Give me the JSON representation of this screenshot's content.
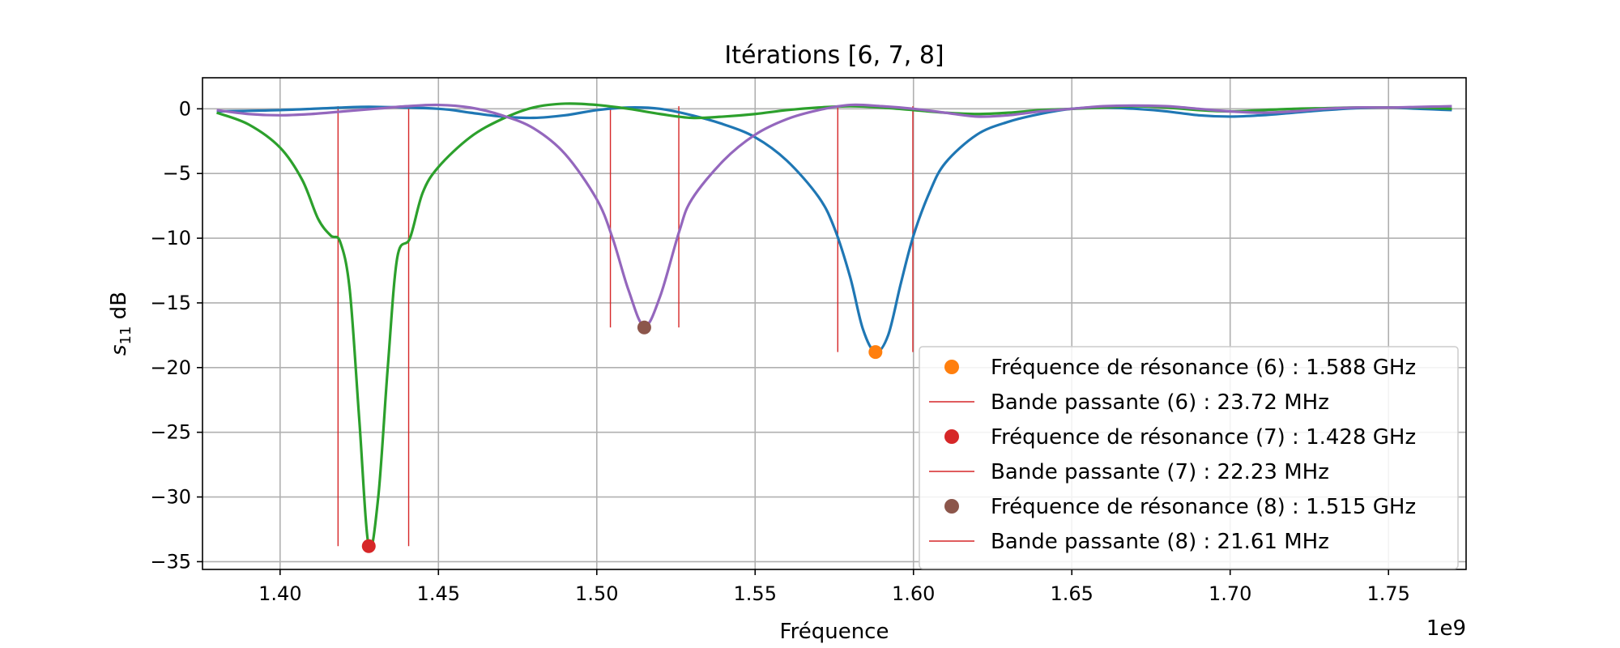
{
  "chart_data": {
    "type": "line",
    "title": "Itérations [6, 7, 8]",
    "xlabel": "Fréquence",
    "ylabel_main": "s",
    "ylabel_sub": "11",
    "ylabel_suffix": " dB",
    "x_offset_label": "1e9",
    "xlim": [
      1.3755,
      1.7745
    ],
    "ylim": [
      -35.6,
      2.4
    ],
    "x_ticks": [
      1.4,
      1.45,
      1.5,
      1.55,
      1.6,
      1.65,
      1.7,
      1.75
    ],
    "x_tick_labels": [
      "1.40",
      "1.45",
      "1.50",
      "1.55",
      "1.60",
      "1.65",
      "1.70",
      "1.75"
    ],
    "y_ticks": [
      0,
      -5,
      -10,
      -15,
      -20,
      -25,
      -30,
      -35
    ],
    "y_tick_labels": [
      "0",
      "−5",
      "−10",
      "−15",
      "−20",
      "−25",
      "−30",
      "−35"
    ],
    "grid": true,
    "legend_position": "lower right",
    "series": [
      {
        "color": "#1f77b4",
        "points": [
          [
            1.38,
            -0.2
          ],
          [
            1.4,
            -0.1
          ],
          [
            1.42,
            0.1
          ],
          [
            1.43,
            0.15
          ],
          [
            1.45,
            0.0
          ],
          [
            1.46,
            -0.3
          ],
          [
            1.47,
            -0.6
          ],
          [
            1.48,
            -0.7
          ],
          [
            1.49,
            -0.5
          ],
          [
            1.5,
            -0.1
          ],
          [
            1.51,
            0.1
          ],
          [
            1.52,
            0.0
          ],
          [
            1.53,
            -0.5
          ],
          [
            1.54,
            -1.2
          ],
          [
            1.55,
            -2.2
          ],
          [
            1.56,
            -4.0
          ],
          [
            1.57,
            -6.8
          ],
          [
            1.575,
            -9.2
          ],
          [
            1.58,
            -13.0
          ],
          [
            1.584,
            -17.0
          ],
          [
            1.588,
            -18.8
          ],
          [
            1.592,
            -17.5
          ],
          [
            1.596,
            -13.5
          ],
          [
            1.6,
            -9.8
          ],
          [
            1.605,
            -6.5
          ],
          [
            1.61,
            -4.2
          ],
          [
            1.62,
            -2.0
          ],
          [
            1.63,
            -1.0
          ],
          [
            1.64,
            -0.4
          ],
          [
            1.65,
            0.0
          ],
          [
            1.66,
            0.1
          ],
          [
            1.67,
            0.0
          ],
          [
            1.68,
            -0.2
          ],
          [
            1.69,
            -0.5
          ],
          [
            1.7,
            -0.6
          ],
          [
            1.71,
            -0.5
          ],
          [
            1.72,
            -0.3
          ],
          [
            1.73,
            -0.1
          ],
          [
            1.74,
            0.05
          ],
          [
            1.75,
            0.1
          ],
          [
            1.76,
            0.0
          ],
          [
            1.77,
            -0.1
          ]
        ]
      },
      {
        "color": "#2ca02c",
        "points": [
          [
            1.38,
            -0.3
          ],
          [
            1.39,
            -1.2
          ],
          [
            1.4,
            -3.0
          ],
          [
            1.407,
            -5.5
          ],
          [
            1.412,
            -8.5
          ],
          [
            1.416,
            -9.8
          ],
          [
            1.419,
            -10.3
          ],
          [
            1.422,
            -14.0
          ],
          [
            1.425,
            -24.0
          ],
          [
            1.428,
            -33.8
          ],
          [
            1.431,
            -30.0
          ],
          [
            1.434,
            -20.0
          ],
          [
            1.437,
            -11.5
          ],
          [
            1.441,
            -10.0
          ],
          [
            1.445,
            -6.5
          ],
          [
            1.45,
            -4.5
          ],
          [
            1.46,
            -2.2
          ],
          [
            1.47,
            -0.8
          ],
          [
            1.48,
            0.1
          ],
          [
            1.49,
            0.4
          ],
          [
            1.5,
            0.3
          ],
          [
            1.51,
            0.0
          ],
          [
            1.52,
            -0.4
          ],
          [
            1.53,
            -0.7
          ],
          [
            1.54,
            -0.6
          ],
          [
            1.55,
            -0.4
          ],
          [
            1.56,
            -0.1
          ],
          [
            1.57,
            0.1
          ],
          [
            1.58,
            0.2
          ],
          [
            1.59,
            0.1
          ],
          [
            1.6,
            -0.1
          ],
          [
            1.61,
            -0.3
          ],
          [
            1.62,
            -0.4
          ],
          [
            1.63,
            -0.3
          ],
          [
            1.64,
            -0.1
          ],
          [
            1.65,
            0.0
          ],
          [
            1.66,
            0.1
          ],
          [
            1.67,
            0.2
          ],
          [
            1.68,
            0.1
          ],
          [
            1.69,
            -0.1
          ],
          [
            1.7,
            -0.2
          ],
          [
            1.71,
            -0.1
          ],
          [
            1.72,
            0.0
          ],
          [
            1.73,
            0.05
          ],
          [
            1.74,
            0.1
          ],
          [
            1.75,
            0.1
          ],
          [
            1.76,
            0.1
          ],
          [
            1.77,
            0.0
          ]
        ]
      },
      {
        "color": "#9467bd",
        "points": [
          [
            1.38,
            -0.1
          ],
          [
            1.39,
            -0.4
          ],
          [
            1.4,
            -0.5
          ],
          [
            1.41,
            -0.4
          ],
          [
            1.42,
            -0.2
          ],
          [
            1.43,
            0.0
          ],
          [
            1.44,
            0.2
          ],
          [
            1.45,
            0.3
          ],
          [
            1.46,
            0.1
          ],
          [
            1.47,
            -0.5
          ],
          [
            1.48,
            -1.5
          ],
          [
            1.49,
            -3.5
          ],
          [
            1.5,
            -7.0
          ],
          [
            1.505,
            -10.0
          ],
          [
            1.51,
            -14.0
          ],
          [
            1.515,
            -16.8
          ],
          [
            1.52,
            -14.5
          ],
          [
            1.526,
            -9.5
          ],
          [
            1.53,
            -7.0
          ],
          [
            1.54,
            -4.0
          ],
          [
            1.55,
            -2.0
          ],
          [
            1.56,
            -0.8
          ],
          [
            1.57,
            -0.1
          ],
          [
            1.58,
            0.3
          ],
          [
            1.59,
            0.2
          ],
          [
            1.6,
            0.0
          ],
          [
            1.61,
            -0.3
          ],
          [
            1.62,
            -0.6
          ],
          [
            1.63,
            -0.5
          ],
          [
            1.64,
            -0.2
          ],
          [
            1.65,
            0.0
          ],
          [
            1.66,
            0.2
          ],
          [
            1.67,
            0.25
          ],
          [
            1.68,
            0.2
          ],
          [
            1.69,
            0.0
          ],
          [
            1.7,
            -0.2
          ],
          [
            1.71,
            -0.3
          ],
          [
            1.72,
            -0.2
          ],
          [
            1.73,
            0.0
          ],
          [
            1.74,
            0.1
          ],
          [
            1.75,
            0.1
          ],
          [
            1.76,
            0.15
          ],
          [
            1.77,
            0.2
          ]
        ]
      }
    ],
    "resonance_points": [
      {
        "x": 1.588,
        "y": -18.8,
        "color": "#ff7f0e"
      },
      {
        "x": 1.428,
        "y": -33.8,
        "color": "#d62728"
      },
      {
        "x": 1.515,
        "y": -16.9,
        "color": "#8c564b"
      }
    ],
    "bandwidth_lines": [
      {
        "x": 1.5761,
        "y_bottom": -18.8,
        "y_top": 0.2,
        "color": "#d62728"
      },
      {
        "x": 1.5998,
        "y_bottom": -18.8,
        "y_top": 0.2,
        "color": "#d62728"
      },
      {
        "x": 1.4183,
        "y_bottom": -33.8,
        "y_top": 0.2,
        "color": "#d62728"
      },
      {
        "x": 1.4406,
        "y_bottom": -33.8,
        "y_top": 0.2,
        "color": "#d62728"
      },
      {
        "x": 1.5043,
        "y_bottom": -16.9,
        "y_top": 0.2,
        "color": "#d62728"
      },
      {
        "x": 1.5259,
        "y_bottom": -16.9,
        "y_top": 0.2,
        "color": "#d62728"
      }
    ],
    "legend": [
      {
        "kind": "marker",
        "color": "#ff7f0e",
        "label": "Fréquence de résonance (6) : 1.588 GHz"
      },
      {
        "kind": "line",
        "color": "#d62728",
        "label": "Bande passante (6) : 23.72 MHz"
      },
      {
        "kind": "marker",
        "color": "#d62728",
        "label": "Fréquence de résonance (7) : 1.428 GHz"
      },
      {
        "kind": "line",
        "color": "#d62728",
        "label": "Bande passante (7) : 22.23 MHz"
      },
      {
        "kind": "marker",
        "color": "#8c564b",
        "label": "Fréquence de résonance (8) : 1.515 GHz"
      },
      {
        "kind": "line",
        "color": "#d62728",
        "label": "Bande passante (8) : 21.61 MHz"
      }
    ]
  }
}
